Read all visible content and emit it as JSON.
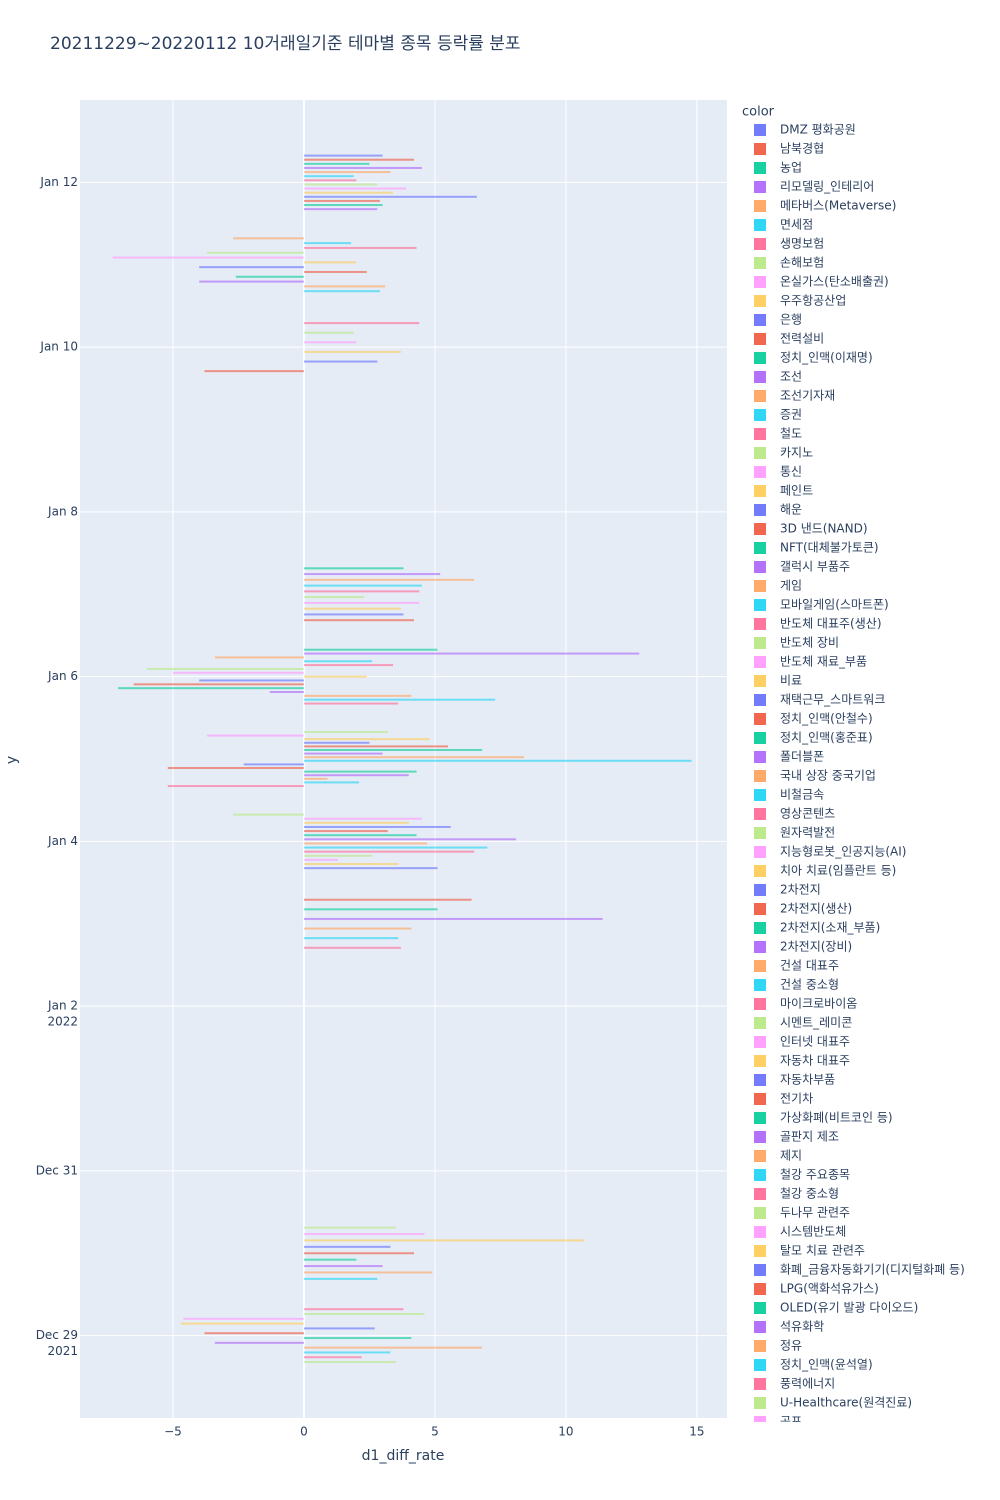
{
  "chart_data": {
    "type": "bar",
    "orientation": "h",
    "title": "20211229~20220112 10거래일기준 테마별 종목 등락률 분포",
    "x_label": "d1_diff_rate",
    "y_label": "y",
    "legend_title": "color",
    "xlim": [
      -8.55,
      16.15
    ],
    "xticks": [
      {
        "value": -5,
        "label": "−5"
      },
      0,
      5,
      10,
      15
    ],
    "ylim": [
      "2021-12-28",
      "2022-01-13"
    ],
    "yticks": [
      {
        "value": "2021-12-29",
        "label": [
          "Dec 29",
          "2021"
        ]
      },
      {
        "value": "2021-12-31",
        "label": [
          "Dec 31"
        ]
      },
      {
        "value": "2022-01-02",
        "label": [
          "Jan 2",
          "2022"
        ]
      },
      {
        "value": "2022-01-04",
        "label": [
          "Jan 4"
        ]
      },
      {
        "value": "2022-01-06",
        "label": [
          "Jan 6"
        ]
      },
      {
        "value": "2022-01-08",
        "label": [
          "Jan 8"
        ]
      },
      {
        "value": "2022-01-10",
        "label": [
          "Jan 10"
        ]
      },
      {
        "value": "2022-01-12",
        "label": [
          "Jan 12"
        ]
      }
    ],
    "grid": true,
    "series": [
      {
        "name": "DMZ 평화공원",
        "color": "#636efa"
      },
      {
        "name": "남북경협",
        "color": "#EF553B"
      },
      {
        "name": "농업",
        "color": "#00cc96"
      },
      {
        "name": "리모델링_인테리어",
        "color": "#ab63fa"
      },
      {
        "name": "메타버스(Metaverse)",
        "color": "#FFA15A"
      },
      {
        "name": "면세점",
        "color": "#19d3f3"
      },
      {
        "name": "생명보험",
        "color": "#FF6692"
      },
      {
        "name": "손해보험",
        "color": "#B6E880"
      },
      {
        "name": "온실가스(탄소배출권)",
        "color": "#FF97FF"
      },
      {
        "name": "우주항공산업",
        "color": "#FECB52"
      },
      {
        "name": "은행",
        "color": "#636efa"
      },
      {
        "name": "전력설비",
        "color": "#EF553B"
      },
      {
        "name": "정치_인맥(이재명)",
        "color": "#00cc96"
      },
      {
        "name": "조선",
        "color": "#ab63fa"
      },
      {
        "name": "조선기자재",
        "color": "#FFA15A"
      },
      {
        "name": "증권",
        "color": "#19d3f3"
      },
      {
        "name": "철도",
        "color": "#FF6692"
      },
      {
        "name": "카지노",
        "color": "#B6E880"
      },
      {
        "name": "통신",
        "color": "#FF97FF"
      },
      {
        "name": "페인트",
        "color": "#FECB52"
      },
      {
        "name": "해운",
        "color": "#636efa"
      },
      {
        "name": "3D 낸드(NAND)",
        "color": "#EF553B"
      },
      {
        "name": "NFT(대체불가토큰)",
        "color": "#00cc96"
      },
      {
        "name": "갤럭시 부품주",
        "color": "#ab63fa"
      },
      {
        "name": "게임",
        "color": "#FFA15A"
      },
      {
        "name": "모바일게임(스마트폰)",
        "color": "#19d3f3"
      },
      {
        "name": "반도체 대표주(생산)",
        "color": "#FF6692"
      },
      {
        "name": "반도체 장비",
        "color": "#B6E880"
      },
      {
        "name": "반도체 재료_부품",
        "color": "#FF97FF"
      },
      {
        "name": "비료",
        "color": "#FECB52"
      },
      {
        "name": "재택근무_스마트워크",
        "color": "#636efa"
      },
      {
        "name": "정치_인맥(안철수)",
        "color": "#EF553B"
      },
      {
        "name": "정치_인맥(홍준표)",
        "color": "#00cc96"
      },
      {
        "name": "폴더블폰",
        "color": "#ab63fa"
      },
      {
        "name": "국내 상장 중국기업",
        "color": "#FFA15A"
      },
      {
        "name": "비철금속",
        "color": "#19d3f3"
      },
      {
        "name": "영상콘텐츠",
        "color": "#FF6692"
      },
      {
        "name": "원자력발전",
        "color": "#B6E880"
      },
      {
        "name": "지능형로봇_인공지능(AI)",
        "color": "#FF97FF"
      },
      {
        "name": "치아 치료(임플란트 등)",
        "color": "#FECB52"
      },
      {
        "name": "2차전지",
        "color": "#636efa"
      },
      {
        "name": "2차전지(생산)",
        "color": "#EF553B"
      },
      {
        "name": "2차전지(소재_부품)",
        "color": "#00cc96"
      },
      {
        "name": "2차전지(장비)",
        "color": "#ab63fa"
      },
      {
        "name": "건설 대표주",
        "color": "#FFA15A"
      },
      {
        "name": "건설 중소형",
        "color": "#19d3f3"
      },
      {
        "name": "마이크로바이옴",
        "color": "#FF6692"
      },
      {
        "name": "시멘트_레미콘",
        "color": "#B6E880"
      },
      {
        "name": "인터넷 대표주",
        "color": "#FF97FF"
      },
      {
        "name": "자동차 대표주",
        "color": "#FECB52"
      },
      {
        "name": "자동차부품",
        "color": "#636efa"
      },
      {
        "name": "전기차",
        "color": "#EF553B"
      },
      {
        "name": "가상화폐(비트코인 등)",
        "color": "#00cc96"
      },
      {
        "name": "골판지 제조",
        "color": "#ab63fa"
      },
      {
        "name": "제지",
        "color": "#FFA15A"
      },
      {
        "name": "철강 주요종목",
        "color": "#19d3f3"
      },
      {
        "name": "철강 중소형",
        "color": "#FF6692"
      },
      {
        "name": "두나무 관련주",
        "color": "#B6E880"
      },
      {
        "name": "시스템반도체",
        "color": "#FF97FF"
      },
      {
        "name": "탈모 치료 관련주",
        "color": "#FECB52"
      },
      {
        "name": "화폐_금융자동화기기(디지털화폐 등)",
        "color": "#636efa"
      },
      {
        "name": "LPG(액화석유가스)",
        "color": "#EF553B"
      },
      {
        "name": "OLED(유기 발광 다이오드)",
        "color": "#00cc96"
      },
      {
        "name": "석유화학",
        "color": "#ab63fa"
      },
      {
        "name": "정유",
        "color": "#FFA15A"
      },
      {
        "name": "정치_인맥(윤석열)",
        "color": "#19d3f3"
      },
      {
        "name": "풍력에너지",
        "color": "#FF6692"
      },
      {
        "name": "U-Healthcare(원격진료)",
        "color": "#B6E880"
      },
      {
        "name": "공포",
        "color": "#FF97FF"
      }
    ],
    "bars": [
      {
        "y": "2022-01-12",
        "values": [
          3.0,
          4.2,
          2.5,
          4.5,
          3.3,
          1.9,
          2.0,
          2.8,
          3.9,
          3.4,
          6.6,
          2.9,
          3.0,
          2.8
        ],
        "series": [
          0,
          1,
          2,
          3,
          4,
          5,
          6,
          7,
          8,
          9,
          10,
          11,
          12,
          13
        ]
      },
      {
        "y": "2022-01-11",
        "values": [
          -2.7,
          1.8,
          4.3,
          -3.7,
          -7.3,
          2.0,
          -4.0,
          2.4,
          -2.6,
          -4.0,
          3.1,
          2.9
        ],
        "series": [
          14,
          15,
          16,
          17,
          18,
          19,
          20,
          21,
          22,
          23,
          24,
          25
        ]
      },
      {
        "y": "2022-01-10",
        "values": [
          4.4,
          1.9,
          2.0,
          3.7,
          2.8,
          -3.8
        ],
        "series": [
          26,
          27,
          28,
          29,
          30,
          31
        ]
      },
      {
        "y": "2022-01-07",
        "values": [
          3.8,
          5.2,
          6.5,
          4.5,
          4.4,
          2.3,
          4.4,
          3.7,
          3.8,
          4.2
        ],
        "series": [
          32,
          33,
          34,
          35,
          36,
          37,
          38,
          39,
          40,
          41
        ]
      },
      {
        "y": "2022-01-06",
        "values": [
          5.1,
          12.8,
          -3.4,
          2.6,
          3.4,
          -6.0,
          -5.0,
          2.4,
          -4.0,
          -6.5,
          -7.1,
          -1.3,
          4.1,
          7.3,
          3.6
        ],
        "series": [
          42,
          43,
          44,
          45,
          46,
          47,
          48,
          49,
          50,
          51,
          52,
          53,
          54,
          55,
          56
        ]
      },
      {
        "y": "2022-01-05",
        "values": [
          3.2,
          -3.7,
          4.8,
          2.5,
          5.5,
          6.8,
          3.0,
          8.4,
          14.8,
          -2.3,
          -5.2,
          4.3,
          4.0,
          0.9,
          2.1,
          -5.2
        ],
        "series": [
          57,
          58,
          59,
          60,
          61,
          62,
          63,
          64,
          65,
          0,
          1,
          2,
          3,
          4,
          5,
          6
        ]
      },
      {
        "y": "2022-01-04",
        "values": [
          -2.7,
          4.5,
          4.0,
          5.6,
          3.2,
          4.3,
          8.1,
          4.7,
          7.0,
          6.5,
          2.6,
          1.3,
          3.6,
          5.1
        ],
        "series": [
          7,
          8,
          9,
          10,
          11,
          12,
          13,
          14,
          15,
          16,
          17,
          18,
          19,
          20
        ]
      },
      {
        "y": "2022-01-03",
        "values": [
          6.4,
          5.1,
          11.4,
          4.1,
          3.6,
          3.7
        ],
        "series": [
          21,
          22,
          23,
          24,
          25,
          26
        ]
      },
      {
        "y": "2021-12-30",
        "values": [
          3.5,
          4.6,
          10.7,
          3.3,
          4.2,
          2.0,
          3.0,
          4.9,
          2.8
        ],
        "series": [
          27,
          28,
          29,
          30,
          31,
          32,
          33,
          34,
          35
        ]
      },
      {
        "y": "2021-12-29",
        "values": [
          3.8,
          4.6,
          -4.6,
          -4.7,
          2.7,
          -3.8,
          4.1,
          -3.4,
          6.8,
          3.3,
          2.2,
          3.5
        ],
        "series": [
          36,
          37,
          38,
          39,
          40,
          41,
          42,
          43,
          44,
          45,
          46,
          47
        ]
      }
    ]
  }
}
